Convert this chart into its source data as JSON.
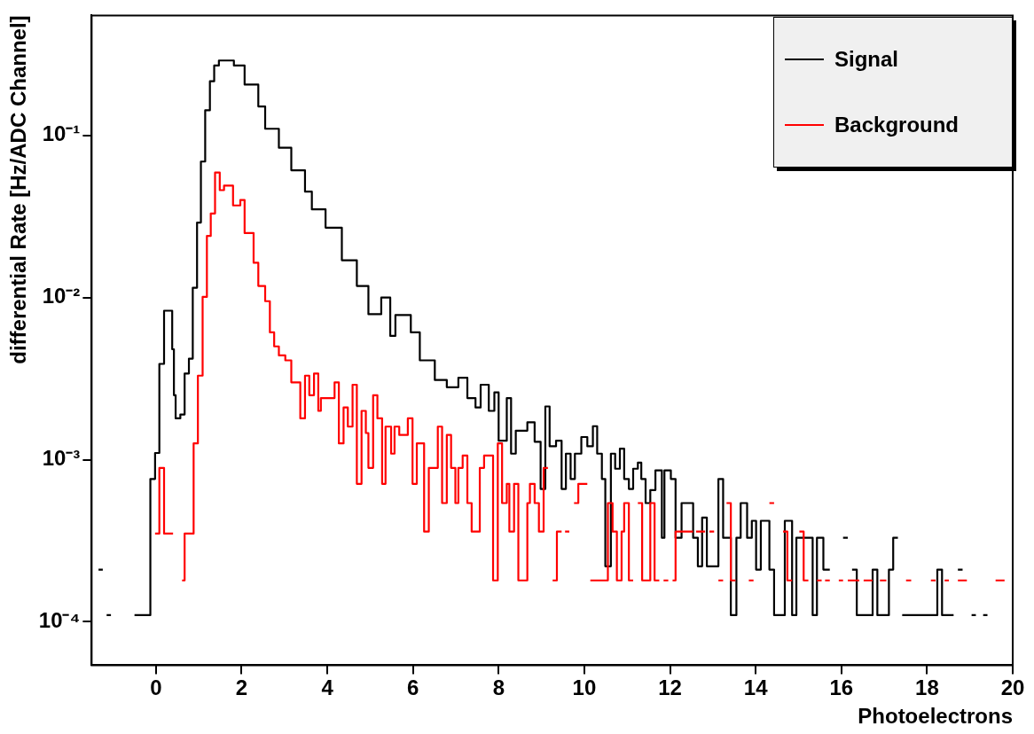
{
  "chart_data": {
    "type": "step",
    "xlabel": "Photoelectrons",
    "ylabel": "differential Rate [Hz/ADC Channel]",
    "log": "y",
    "grid": false,
    "legend": "top right",
    "xlim": [
      -1.5,
      20
    ],
    "xticks": [
      0,
      2,
      4,
      6,
      8,
      10,
      12,
      14,
      16,
      18,
      20
    ],
    "ylim": [
      5.4e-05,
      0.55
    ],
    "yticks": [
      {
        "value": 0.0001,
        "label": "10⁻⁴"
      },
      {
        "value": 0.001,
        "label": "10⁻³"
      },
      {
        "value": 0.01,
        "label": "10⁻²"
      },
      {
        "value": 0.1,
        "label": "10⁻¹"
      }
    ],
    "series": [
      {
        "name": "Signal",
        "color": "#000000",
        "type": "step",
        "x": [
          -1.34,
          -1.24,
          -1.15,
          -1.05,
          -0.5,
          -0.13,
          -0.02,
          0.08,
          0.19,
          0.38,
          0.42,
          0.46,
          0.57,
          0.67,
          0.77,
          0.86,
          0.96,
          1.05,
          1.15,
          1.26,
          1.36,
          1.47,
          1.82,
          2.07,
          2.39,
          2.55,
          2.87,
          3.16,
          3.48,
          3.64,
          3.96,
          4.34,
          4.69,
          4.96,
          5.26,
          5.47,
          5.59,
          5.95,
          6.16,
          6.37,
          6.51,
          6.79,
          7.06,
          7.27,
          7.46,
          7.58,
          7.77,
          7.9,
          8.0,
          8.19,
          8.29,
          8.4,
          8.67,
          8.84,
          8.98,
          9.09,
          9.19,
          9.34,
          9.47,
          9.57,
          9.68,
          9.78,
          9.93,
          10.07,
          10.2,
          10.3,
          10.41,
          10.49,
          10.62,
          10.72,
          10.83,
          10.93,
          11.04,
          11.14,
          11.25,
          11.33,
          11.43,
          11.54,
          11.66,
          11.81,
          11.87,
          12.02,
          12.13,
          12.27,
          12.54,
          12.65,
          12.75,
          12.86,
          13.13,
          13.24,
          13.42,
          13.55,
          13.65,
          13.8,
          13.91,
          14.01,
          14.12,
          14.32,
          14.43,
          14.68,
          14.85,
          14.95,
          15.33,
          15.43,
          15.58,
          15.73,
          16.04,
          16.15,
          16.25,
          16.36,
          16.73,
          16.84,
          17.11,
          17.21,
          17.32,
          17.42,
          18.24,
          18.35,
          18.62,
          18.72,
          18.83,
          19.04,
          19.14,
          19.31,
          19.41
        ],
        "values": [
          0.00021,
          null,
          0.00011,
          null,
          0.00011,
          0.00076,
          0.0011,
          0.0039,
          0.0083,
          0.0048,
          0.0025,
          0.0018,
          0.0019,
          0.0034,
          0.0042,
          0.0115,
          0.029,
          0.069,
          0.143,
          0.216,
          0.27,
          0.29,
          0.27,
          0.206,
          0.151,
          0.11,
          0.084,
          0.061,
          0.045,
          0.035,
          0.027,
          0.017,
          0.0118,
          0.0079,
          0.01,
          0.0058,
          0.0078,
          0.0061,
          0.0041,
          0.0041,
          0.0031,
          0.0028,
          0.0032,
          0.0024,
          0.0021,
          0.0029,
          0.002,
          0.0026,
          0.00131,
          0.0024,
          0.00109,
          0.00151,
          0.0017,
          0.00129,
          0.00066,
          0.00213,
          0.00121,
          0.00131,
          0.00066,
          0.00109,
          0.00076,
          0.00109,
          0.00138,
          0.00121,
          0.00161,
          0.00109,
          0.00076,
          0.00022,
          0.00109,
          0.00088,
          0.00117,
          0.00076,
          0.00066,
          0.00088,
          0.00096,
          0.00076,
          0.00054,
          0.00065,
          0.00086,
          0.00033,
          0.00086,
          0.00076,
          0.00033,
          0.00054,
          0.00033,
          0.00022,
          0.00044,
          0.00022,
          0.00076,
          0.00033,
          0.00011,
          0.00033,
          0.00054,
          0.00033,
          0.00042,
          0.00021,
          0.00042,
          0.00021,
          0.00011,
          0.00042,
          0.00011,
          0.00033,
          0.00011,
          0.00033,
          0.00021,
          null,
          0.00033,
          null,
          0.00021,
          0.00011,
          0.00021,
          0.00011,
          0.00021,
          0.00033,
          null,
          0.00011,
          0.00021,
          0.00011,
          null,
          0.00021,
          null,
          0.00011,
          null,
          0.00011,
          0.00011
        ]
      },
      {
        "name": "Background",
        "color": "#ff0000",
        "type": "step",
        "x": [
          -0.02,
          0.08,
          0.19,
          0.4,
          0.61,
          0.67,
          0.88,
          0.98,
          1.09,
          1.19,
          1.28,
          1.38,
          1.49,
          1.59,
          1.8,
          1.97,
          2.07,
          2.28,
          2.39,
          2.55,
          2.66,
          2.76,
          2.87,
          3.02,
          3.16,
          3.37,
          3.48,
          3.58,
          3.69,
          3.79,
          3.85,
          4.17,
          4.27,
          4.38,
          4.48,
          4.59,
          4.69,
          4.8,
          4.9,
          4.96,
          5.07,
          5.17,
          5.28,
          5.36,
          5.49,
          5.57,
          5.68,
          5.88,
          5.99,
          6.09,
          6.26,
          6.37,
          6.58,
          6.68,
          6.79,
          6.89,
          6.99,
          7.06,
          7.16,
          7.27,
          7.37,
          7.56,
          7.66,
          7.87,
          7.98,
          8.08,
          8.19,
          8.25,
          8.36,
          8.46,
          8.67,
          8.73,
          8.84,
          8.94,
          9.05,
          9.15,
          9.26,
          9.36,
          9.47,
          9.55,
          9.65,
          9.76,
          9.86,
          10.07,
          10.14,
          10.55,
          10.66,
          10.76,
          10.87,
          10.93,
          11.04,
          11.14,
          11.25,
          11.35,
          11.54,
          11.64,
          11.75,
          11.85,
          11.96,
          12.06,
          12.13,
          12.54,
          12.61,
          12.82,
          12.92,
          13.03,
          13.13,
          13.24,
          13.32,
          13.42,
          13.53,
          13.84,
          13.95,
          14.32,
          14.43,
          14.64,
          14.74,
          14.85,
          15.02,
          15.12,
          15.23,
          15.43,
          15.54,
          15.62,
          15.73,
          15.94,
          16.04,
          16.15,
          16.42,
          16.52,
          16.73,
          16.9,
          17.05,
          17.51,
          17.63,
          18.09,
          18.2,
          18.41,
          18.51,
          18.72,
          18.93,
          19.6,
          19.81
        ],
        "values": [
          0.00035,
          0.00089,
          0.00035,
          null,
          0.00018,
          0.00035,
          0.00126,
          0.0033,
          0.0101,
          0.024,
          0.033,
          0.059,
          0.046,
          0.049,
          0.037,
          0.04,
          0.025,
          0.0164,
          0.0118,
          0.0095,
          0.0061,
          0.005,
          0.0044,
          0.0041,
          0.003,
          0.0018,
          0.0033,
          0.0025,
          0.0034,
          0.002,
          0.0024,
          0.003,
          0.00126,
          0.0021,
          0.0016,
          0.0029,
          0.00071,
          0.002,
          0.00146,
          0.00089,
          0.0025,
          0.0018,
          0.00071,
          0.0016,
          0.00109,
          0.0016,
          0.00142,
          0.0018,
          0.00071,
          0.00126,
          0.00036,
          0.00089,
          0.0016,
          0.00054,
          0.00142,
          0.00089,
          0.00054,
          0.00089,
          0.00106,
          0.00054,
          0.00036,
          0.00089,
          0.00106,
          0.00018,
          0.00126,
          0.00054,
          0.00071,
          0.00036,
          0.00071,
          0.00018,
          0.00054,
          0.00071,
          0.00054,
          0.00036,
          0.00089,
          null,
          0.00018,
          0.00036,
          null,
          0.00036,
          null,
          0.00054,
          0.00071,
          null,
          0.00018,
          0.00054,
          0.00036,
          0.00018,
          0.00036,
          0.00054,
          0.00018,
          null,
          0.00054,
          0.00018,
          0.00054,
          0.00018,
          null,
          0.00018,
          null,
          0.00018,
          0.00036,
          null,
          0.00036,
          null,
          0.00036,
          null,
          0.00018,
          null,
          0.00054,
          0.00018,
          null,
          0.00018,
          null,
          0.00054,
          null,
          0.00036,
          0.00018,
          null,
          0.00036,
          0.00018,
          null,
          0.00018,
          null,
          0.00018,
          null,
          0.00018,
          null,
          0.00018,
          null,
          0.00018,
          null,
          0.00018,
          null,
          0.00018,
          null,
          0.00018,
          null,
          0.00018,
          null,
          0.00018,
          null,
          0.00018,
          0.00018
        ]
      }
    ]
  }
}
